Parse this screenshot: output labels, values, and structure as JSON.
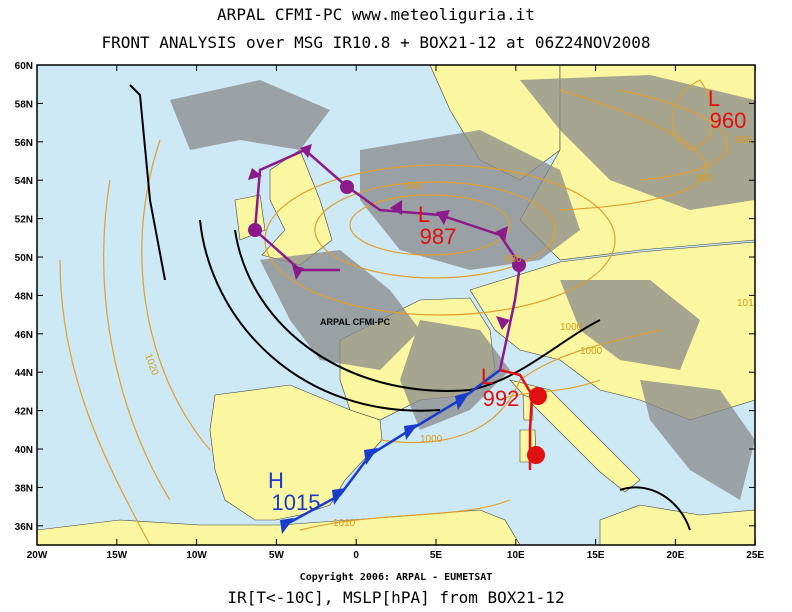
{
  "header": {
    "line1": "ARPAL   CFMI-PC   www.meteoliguria.it",
    "line2": "FRONT ANALYSIS over MSG IR10.8 + BOX21-12 at 06Z24NOV2008"
  },
  "lat_labels": [
    "60N",
    "58N",
    "56N",
    "54N",
    "52N",
    "50N",
    "48N",
    "46N",
    "44N",
    "42N",
    "40N",
    "38N",
    "36N"
  ],
  "lon_labels": [
    "20W",
    "15W",
    "10W",
    "5W",
    "0",
    "5E",
    "10E",
    "15E",
    "20E",
    "25E"
  ],
  "pressure_centers": [
    {
      "type": "L",
      "value": "960"
    },
    {
      "type": "L",
      "value": "987"
    },
    {
      "type": "L",
      "value": "992"
    },
    {
      "type": "H",
      "value": "1015"
    }
  ],
  "isobar_labels": [
    "980",
    "988",
    "980",
    "980",
    "1000",
    "1000",
    "1000",
    "1010",
    "1020",
    "101"
  ],
  "watermark": "ARPAL CFMI-PC",
  "copyright": "Copyright 2006: ARPAL - EUMETSAT",
  "footer": "IR[T<-10C], MSLP[hPA] from BOX21-12"
}
